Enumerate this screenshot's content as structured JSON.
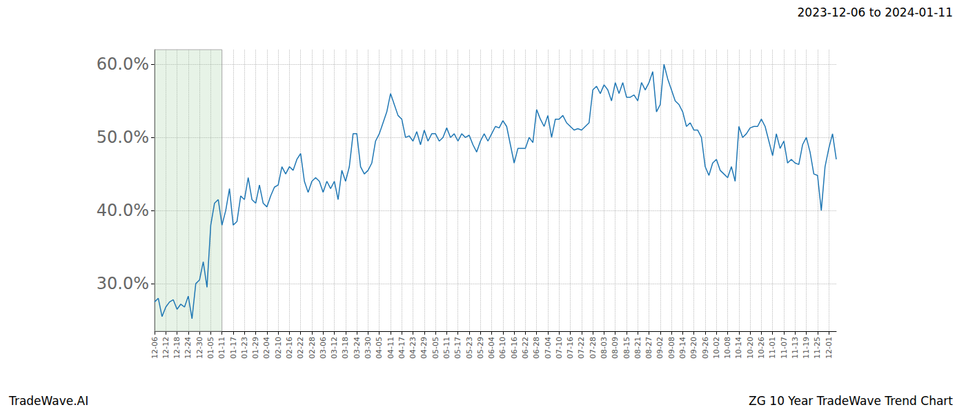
{
  "chart_data": {
    "type": "line",
    "title": "ZG 10 Year TradeWave Trend Chart",
    "subtitle": "2023-12-06 to 2024-01-11",
    "source": "TradeWave.AI",
    "color": "#1f77b4",
    "grid": true,
    "highlight_range": [
      "12-06",
      "01-11"
    ],
    "ylim": [
      23.5,
      62
    ],
    "yticks": [
      {
        "value": 30,
        "label": "30.0%"
      },
      {
        "value": 40,
        "label": "40.0%"
      },
      {
        "value": 50,
        "label": "50.0%"
      },
      {
        "value": 60,
        "label": "60.0%"
      }
    ],
    "categories": [
      "12-06",
      null,
      null,
      "12-12",
      null,
      null,
      "12-18",
      null,
      null,
      "12-24",
      null,
      null,
      "12-30",
      null,
      null,
      "01-05",
      null,
      null,
      "01-11",
      null,
      null,
      "01-17",
      null,
      null,
      "01-23",
      null,
      null,
      "01-29",
      null,
      null,
      "02-04",
      null,
      null,
      "02-10",
      null,
      null,
      "02-16",
      null,
      null,
      "02-22",
      null,
      null,
      "02-28",
      null,
      null,
      "03-06",
      null,
      null,
      "03-12",
      null,
      null,
      "03-18",
      null,
      null,
      "03-24",
      null,
      null,
      "03-30",
      null,
      null,
      "04-05",
      null,
      null,
      "04-11",
      null,
      null,
      "04-17",
      null,
      null,
      "04-23",
      null,
      null,
      "04-29",
      null,
      null,
      "05-05",
      null,
      null,
      "05-11",
      null,
      null,
      "05-17",
      null,
      null,
      "05-23",
      null,
      null,
      "05-29",
      null,
      null,
      "06-04",
      null,
      null,
      "06-10",
      null,
      null,
      "06-16",
      null,
      null,
      "06-22",
      null,
      null,
      "06-28",
      null,
      null,
      "07-04",
      null,
      null,
      "07-10",
      null,
      null,
      "07-16",
      null,
      null,
      "07-22",
      null,
      null,
      "07-28",
      null,
      null,
      "08-03",
      null,
      null,
      "08-09",
      null,
      null,
      "08-15",
      null,
      null,
      "08-21",
      null,
      null,
      "08-27",
      null,
      null,
      "09-02",
      null,
      null,
      "09-08",
      null,
      null,
      "09-14",
      null,
      null,
      "09-20",
      null,
      null,
      "09-26",
      null,
      null,
      "10-02",
      null,
      null,
      "10-08",
      null,
      null,
      "10-14",
      null,
      null,
      "10-20",
      null,
      null,
      "10-26",
      null,
      null,
      "11-01",
      null,
      null,
      "11-07",
      null,
      null,
      "11-13",
      null,
      null,
      "11-19",
      null,
      null,
      "11-25",
      null,
      null,
      "12-01",
      null,
      null
    ],
    "values": [
      27.5,
      28.0,
      25.5,
      26.8,
      27.5,
      27.8,
      26.5,
      27.2,
      26.8,
      28.3,
      25.2,
      30.0,
      30.5,
      33.0,
      29.5,
      38.0,
      41.0,
      41.5,
      38.0,
      40.0,
      43.0,
      38.0,
      38.5,
      42.0,
      41.5,
      44.5,
      41.5,
      41.0,
      43.5,
      41.0,
      40.5,
      42.0,
      43.2,
      43.5,
      46.0,
      45.0,
      46.0,
      45.5,
      47.0,
      47.8,
      44.0,
      42.5,
      44.0,
      44.5,
      44.0,
      42.5,
      44.0,
      43.0,
      44.0,
      41.5,
      45.5,
      44.0,
      46.0,
      50.5,
      50.5,
      46.0,
      45.0,
      45.5,
      46.5,
      49.5,
      50.5,
      52.0,
      53.5,
      56.0,
      54.5,
      53.0,
      52.5,
      50.0,
      50.2,
      49.5,
      50.8,
      49.0,
      51.0,
      49.5,
      50.5,
      50.5,
      49.5,
      50.0,
      51.3,
      50.0,
      50.5,
      49.5,
      50.5,
      50.0,
      50.3,
      49.0,
      48.0,
      49.5,
      50.5,
      49.5,
      50.5,
      51.5,
      51.3,
      52.3,
      51.5,
      49.0,
      46.5,
      48.5,
      48.5,
      48.5,
      50.0,
      49.3,
      53.8,
      52.5,
      51.5,
      53.0,
      50.0,
      52.5,
      52.5,
      53.0,
      52.0,
      51.5,
      51.0,
      51.2,
      51.0,
      51.5,
      52.0,
      56.5,
      57.0,
      56.0,
      57.2,
      56.5,
      55.0,
      57.5,
      56.0,
      57.5,
      55.5,
      55.5,
      55.8,
      55.0,
      57.5,
      56.5,
      57.5,
      59.0,
      53.5,
      54.5,
      60.0,
      58.0,
      56.5,
      55.0,
      54.5,
      53.5,
      51.5,
      52.0,
      51.0,
      51.0,
      50.0,
      46.0,
      44.8,
      46.5,
      47.0,
      45.5,
      45.0,
      44.5,
      46.0,
      44.0,
      51.5,
      50.0,
      50.5,
      51.3,
      51.5,
      51.5,
      52.5,
      51.5,
      49.5,
      47.5,
      50.5,
      48.5,
      49.5,
      46.5,
      47.0,
      46.5,
      46.3,
      49.0,
      50.0,
      48.0,
      45.0,
      44.8,
      40.0,
      46.0,
      48.5,
      50.5,
      47.0
    ]
  }
}
